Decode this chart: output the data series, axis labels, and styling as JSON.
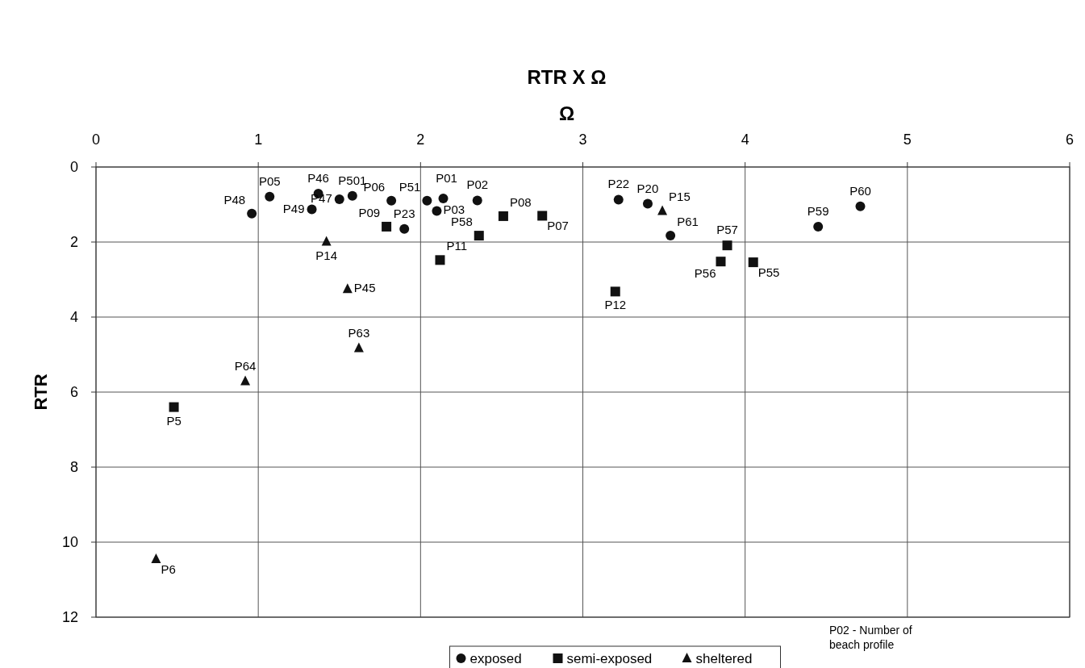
{
  "chart_data": {
    "type": "scatter",
    "title": "RTR X Ω",
    "xlabel": "Ω",
    "ylabel": "RTR",
    "xlim": [
      0,
      6
    ],
    "xticks": [
      0,
      1,
      2,
      3,
      4,
      5,
      6
    ],
    "ylim": [
      12,
      0
    ],
    "yticks": [
      0,
      2,
      4,
      6,
      8,
      10,
      12
    ],
    "grid": true,
    "legend": "bottom",
    "series": [
      {
        "name": "exposed",
        "color": "#111111",
        "marker": "circle",
        "x": [
          0.96,
          1.07,
          1.37,
          1.33,
          1.5,
          1.58,
          1.82,
          1.9,
          2.04,
          2.1,
          2.14,
          2.35,
          3.22,
          3.4,
          3.54,
          4.45,
          4.71
        ],
        "values": [
          1.24,
          0.79,
          0.71,
          1.13,
          0.86,
          0.77,
          0.9,
          1.65,
          0.9,
          1.17,
          0.84,
          0.89,
          0.87,
          0.98,
          1.83,
          1.59,
          1.05
        ]
      },
      {
        "name": "semi-exposed",
        "color": "#111111",
        "marker": "square",
        "x": [
          1.79,
          2.12,
          2.36,
          2.51,
          2.75,
          3.2,
          3.85,
          3.89,
          4.05,
          0.48
        ],
        "values": [
          1.59,
          2.48,
          1.83,
          1.31,
          1.3,
          3.32,
          2.52,
          2.09,
          2.54,
          6.4
        ]
      },
      {
        "name": "sheltered",
        "color": "#111111",
        "marker": "triangle",
        "x": [
          1.42,
          1.55,
          1.62,
          3.49,
          0.92,
          0.37
        ],
        "values": [
          1.99,
          3.25,
          4.83,
          1.17,
          5.71,
          10.45
        ]
      }
    ],
    "annotations": [
      {
        "text": "P48",
        "x": 0.96,
        "y": 1.24
      },
      {
        "text": "P05",
        "x": 1.07,
        "y": 0.79
      },
      {
        "text": "P46",
        "x": 1.37,
        "y": 0.71
      },
      {
        "text": "P49",
        "x": 1.33,
        "y": 1.13
      },
      {
        "text": "P47",
        "x": 1.5,
        "y": 0.86
      },
      {
        "text": "P501",
        "x": 1.58,
        "y": 0.77
      },
      {
        "text": "P06",
        "x": 1.82,
        "y": 0.9
      },
      {
        "text": "P23",
        "x": 1.9,
        "y": 1.65
      },
      {
        "text": "P51",
        "x": 2.04,
        "y": 0.9
      },
      {
        "text": "P03",
        "x": 2.1,
        "y": 1.17
      },
      {
        "text": "P01",
        "x": 2.14,
        "y": 0.84
      },
      {
        "text": "P02",
        "x": 2.35,
        "y": 0.89
      },
      {
        "text": "P22",
        "x": 3.22,
        "y": 0.87
      },
      {
        "text": "P20",
        "x": 3.4,
        "y": 0.98
      },
      {
        "text": "P61",
        "x": 3.54,
        "y": 1.83
      },
      {
        "text": "P59",
        "x": 4.45,
        "y": 1.59
      },
      {
        "text": "P60",
        "x": 4.71,
        "y": 1.05
      },
      {
        "text": "P09",
        "x": 1.79,
        "y": 1.59
      },
      {
        "text": "P11",
        "x": 2.12,
        "y": 2.48
      },
      {
        "text": "P58",
        "x": 2.36,
        "y": 1.83
      },
      {
        "text": "P08",
        "x": 2.51,
        "y": 1.31
      },
      {
        "text": "P07",
        "x": 2.75,
        "y": 1.3
      },
      {
        "text": "P12",
        "x": 3.2,
        "y": 3.32
      },
      {
        "text": "P56",
        "x": 3.85,
        "y": 2.52
      },
      {
        "text": "P57",
        "x": 3.89,
        "y": 2.09
      },
      {
        "text": "P55",
        "x": 4.05,
        "y": 2.54
      },
      {
        "text": "P5",
        "x": 0.48,
        "y": 6.4
      },
      {
        "text": "P14",
        "x": 1.42,
        "y": 1.99
      },
      {
        "text": "P45",
        "x": 1.55,
        "y": 3.25
      },
      {
        "text": "P63",
        "x": 1.62,
        "y": 4.83
      },
      {
        "text": "P15",
        "x": 3.49,
        "y": 1.17
      },
      {
        "text": "P64",
        "x": 0.92,
        "y": 5.71
      },
      {
        "text": "P6",
        "x": 0.37,
        "y": 10.45
      },
      "P02 - Number of beach profile"
    ]
  }
}
